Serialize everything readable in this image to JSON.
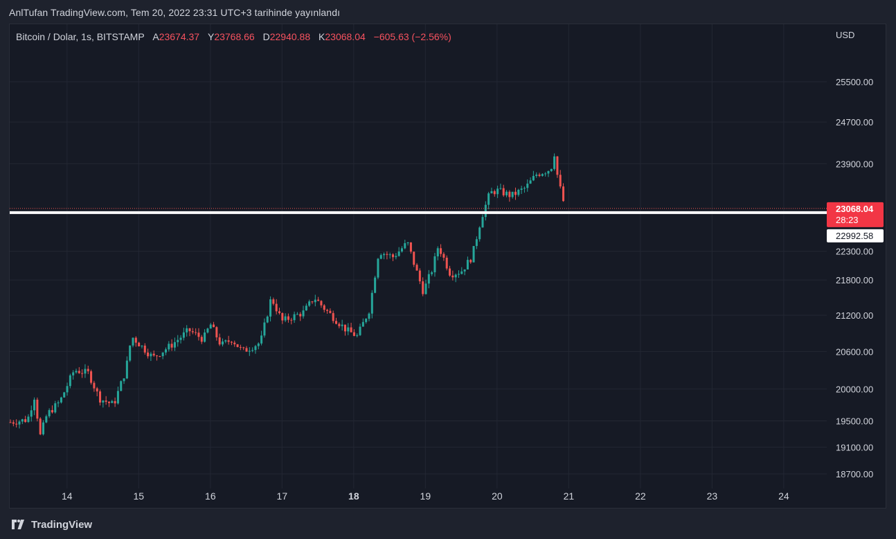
{
  "header": {
    "publish_line": "AnlTufan TradingView.com, Tem 20, 2022 23:31 UTC+3 tarihinde yayınlandı"
  },
  "legend": {
    "symbol": "Bitcoin / Dolar, 1s, BITSTAMP",
    "open_key": "A",
    "open": "23674.37",
    "high_key": "Y",
    "high": "23768.66",
    "low_key": "D",
    "low": "22940.88",
    "close_key": "K",
    "close": "23068.04",
    "change": "−605.63 (−2.56%)"
  },
  "axis": {
    "currency": "USD"
  },
  "price_labels": {
    "current_price": "23068.04",
    "countdown": "28:23",
    "horizontal_line_price": "22992.58"
  },
  "footer": {
    "brand": "TradingView",
    "logo_icon": "tradingview-logo-icon"
  },
  "colors": {
    "up": "#26a69a",
    "down": "#ef5350",
    "background": "#161a25",
    "grid": "#232733",
    "text": "#d1d4dc",
    "current_price_tag": "#f23645"
  },
  "chart_data": {
    "type": "candlestick",
    "title": "Bitcoin / Dolar, 1s, BITSTAMP",
    "y_ticks": [
      25500,
      24700,
      23900,
      22300,
      21800,
      21200,
      20600,
      20000,
      19500,
      19100,
      18700
    ],
    "y_tick_labels": [
      "25500.00",
      "24700.00",
      "23900.00",
      "22300.00",
      "21800.00",
      "21200.00",
      "20600.00",
      "20000.00",
      "19500.00",
      "19100.00",
      "18700.00"
    ],
    "x_ticks": [
      14,
      15,
      16,
      17,
      18,
      19,
      20,
      21,
      22,
      23,
      24
    ],
    "x_tick_labels": [
      "14",
      "15",
      "16",
      "17",
      "18",
      "19",
      "20",
      "21",
      "22",
      "23",
      "24"
    ],
    "x_bold": [
      18
    ],
    "x_range": [
      13.2,
      24.6
    ],
    "scale": "log",
    "horizontal_line": 22992.58,
    "current_price": 23068.04,
    "candle_time_step_days": 0.0417,
    "path_anchors": [
      [
        13.21,
        19480
      ],
      [
        13.45,
        19520
      ],
      [
        13.55,
        19900
      ],
      [
        13.62,
        19250
      ],
      [
        13.72,
        19600
      ],
      [
        13.9,
        19800
      ],
      [
        14.1,
        20300
      ],
      [
        14.3,
        20250
      ],
      [
        14.45,
        19850
      ],
      [
        14.65,
        19750
      ],
      [
        14.82,
        20300
      ],
      [
        14.9,
        20850
      ],
      [
        15.2,
        20500
      ],
      [
        15.45,
        20700
      ],
      [
        15.7,
        20950
      ],
      [
        15.9,
        20800
      ],
      [
        16.0,
        21050
      ],
      [
        16.15,
        20700
      ],
      [
        16.3,
        20800
      ],
      [
        16.45,
        20600
      ],
      [
        16.7,
        20750
      ],
      [
        16.85,
        21500
      ],
      [
        17.0,
        21100
      ],
      [
        17.3,
        21250
      ],
      [
        17.45,
        21500
      ],
      [
        17.6,
        21300
      ],
      [
        17.9,
        20950
      ],
      [
        18.05,
        20850
      ],
      [
        18.22,
        21300
      ],
      [
        18.35,
        22300
      ],
      [
        18.55,
        22200
      ],
      [
        18.75,
        22450
      ],
      [
        18.85,
        22050
      ],
      [
        18.97,
        21600
      ],
      [
        19.1,
        22000
      ],
      [
        19.18,
        22400
      ],
      [
        19.35,
        21900
      ],
      [
        19.5,
        21950
      ],
      [
        19.65,
        22200
      ],
      [
        19.78,
        22900
      ],
      [
        19.9,
        23350
      ],
      [
        20.0,
        23400
      ],
      [
        20.2,
        23300
      ],
      [
        20.4,
        23450
      ],
      [
        20.55,
        23700
      ],
      [
        20.75,
        23800
      ],
      [
        20.8,
        24100
      ],
      [
        20.85,
        23600
      ],
      [
        20.95,
        23068
      ]
    ]
  }
}
